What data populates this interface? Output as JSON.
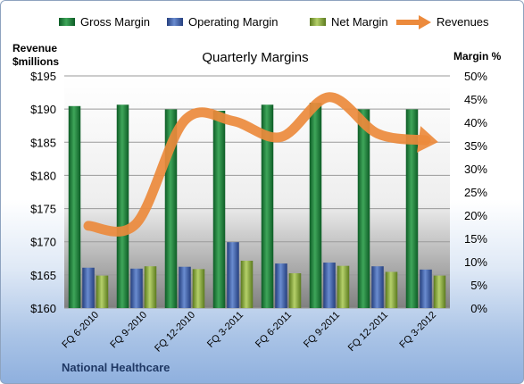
{
  "chart_data": {
    "type": "bar",
    "title": "Quarterly Margins",
    "left_axis_label_line1": "Revenue",
    "left_axis_label_line2": "$millions",
    "right_axis_label": "Margin %",
    "footer": "National Healthcare",
    "categories": [
      "FQ 6-2010",
      "FQ 9-2010",
      "FQ 12-2010",
      "FQ 3-2011",
      "FQ 6-2011",
      "FQ 9-2011",
      "FQ 12-2011",
      "FQ 3-2012"
    ],
    "left_axis": {
      "min": 160,
      "max": 195,
      "step": 5,
      "tick_labels": [
        "$160",
        "$165",
        "$170",
        "$175",
        "$180",
        "$185",
        "$190",
        "$195"
      ]
    },
    "right_axis": {
      "min": 0,
      "max": 50,
      "step": 5,
      "tick_labels": [
        "0%",
        "5%",
        "10%",
        "15%",
        "20%",
        "25%",
        "30%",
        "35%",
        "40%",
        "45%",
        "50%"
      ]
    },
    "series": [
      {
        "name": "Gross Margin",
        "kind": "bar",
        "axis": "right",
        "color": "#1e7a3a",
        "values": [
          43.5,
          43.8,
          42.8,
          42.5,
          43.8,
          44.2,
          42.8,
          42.8
        ]
      },
      {
        "name": "Operating Margin",
        "kind": "bar",
        "axis": "right",
        "color": "#3d5fa8",
        "values": [
          8.7,
          8.5,
          8.9,
          14.2,
          9.6,
          9.8,
          9.0,
          8.3
        ]
      },
      {
        "name": "Net Margin",
        "kind": "bar",
        "axis": "right",
        "color": "#8bab3c",
        "values": [
          7.0,
          9.0,
          8.4,
          10.2,
          7.5,
          9.1,
          7.8,
          7.0
        ]
      },
      {
        "name": "Revenues",
        "kind": "line",
        "axis": "left",
        "color": "#ec8a3c",
        "values": [
          172.4,
          172.8,
          188.3,
          188.2,
          185.8,
          191.8,
          186.3,
          185.3
        ]
      }
    ],
    "legend_position": "top",
    "grid": true
  }
}
